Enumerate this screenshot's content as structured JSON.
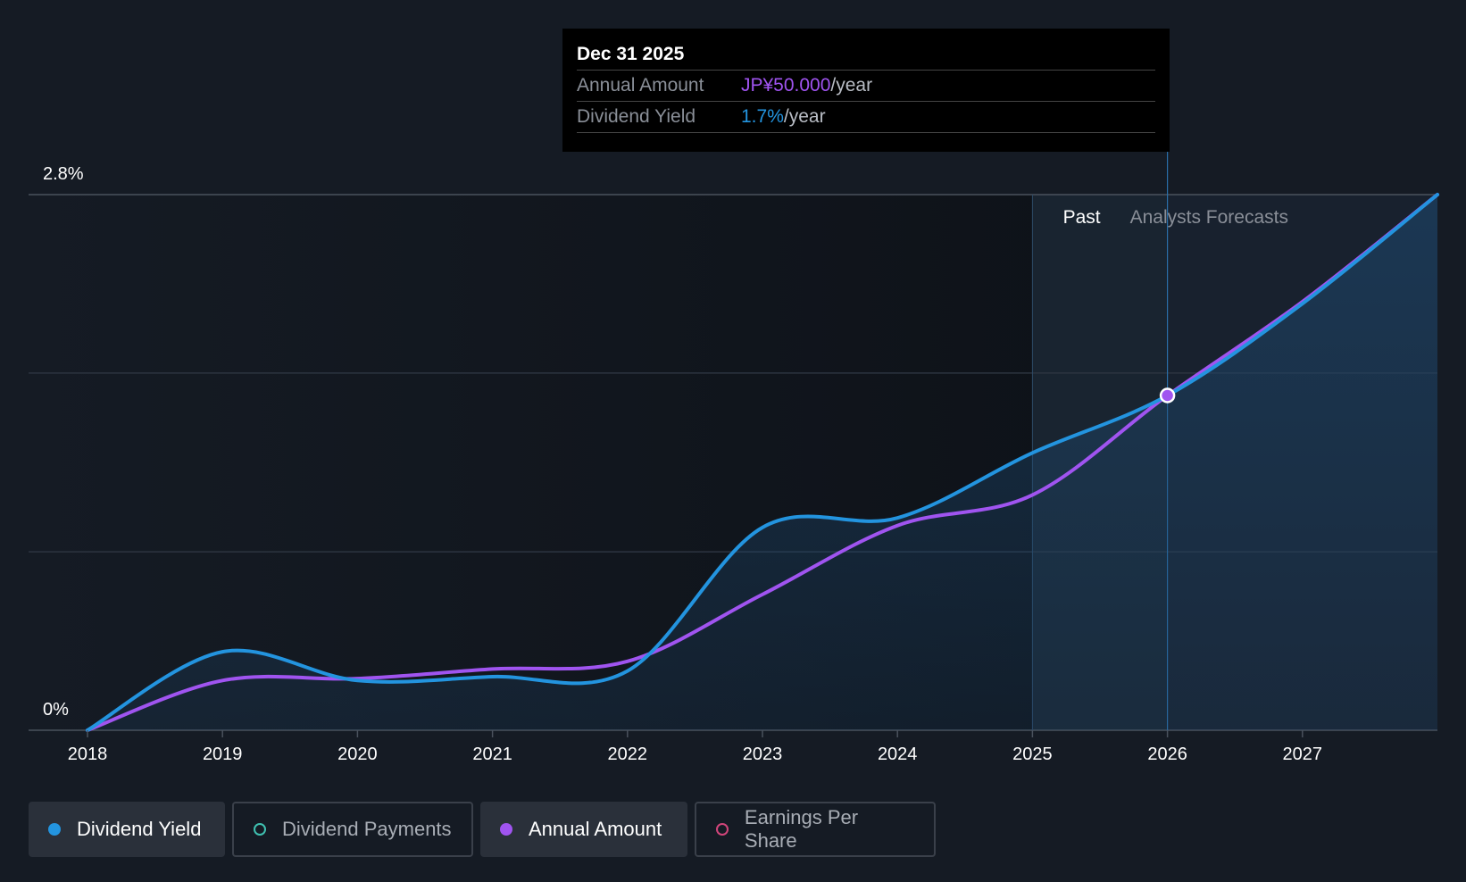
{
  "tooltip": {
    "date": "Dec 31 2025",
    "annual_label": "Annual Amount",
    "annual_value": "JP¥50.000",
    "annual_unit": "/year",
    "yield_label": "Dividend Yield",
    "yield_value": "1.7%",
    "yield_unit": "/year"
  },
  "regions": {
    "past_label": "Past",
    "forecast_label": "Analysts Forecasts"
  },
  "legend": [
    {
      "label": "Dividend Yield",
      "color": "#2394df",
      "filled": true,
      "active": true
    },
    {
      "label": "Dividend Payments",
      "color": "#3fc0b0",
      "filled": false,
      "active": false
    },
    {
      "label": "Annual Amount",
      "color": "#a054f0",
      "filled": true,
      "active": true
    },
    {
      "label": "Earnings Per Share",
      "color": "#d0457a",
      "filled": false,
      "active": false
    }
  ],
  "chart_data": {
    "type": "line",
    "title": "",
    "xlabel": "",
    "ylabel": "",
    "ylim": [
      0,
      2.8
    ],
    "xlim": [
      2018,
      2028
    ],
    "y_tick_labels": [
      "0%",
      "2.8%"
    ],
    "x_tick_labels": [
      "2018",
      "2019",
      "2020",
      "2021",
      "2022",
      "2023",
      "2024",
      "2025",
      "2026",
      "2027"
    ],
    "highlight_x": 2026.0,
    "past_end_x": 2025.0,
    "series": [
      {
        "name": "Dividend Yield",
        "color": "#2394df",
        "points": [
          [
            2018,
            0.0
          ],
          [
            2019,
            0.41
          ],
          [
            2020,
            0.26
          ],
          [
            2021,
            0.28
          ],
          [
            2022,
            0.31
          ],
          [
            2023,
            1.06
          ],
          [
            2024,
            1.11
          ],
          [
            2025,
            1.45
          ],
          [
            2026,
            1.75
          ],
          [
            2027,
            2.23
          ],
          [
            2028,
            2.8
          ]
        ]
      },
      {
        "name": "Annual Amount",
        "color": "#a054f0",
        "points": [
          [
            2018,
            0.0
          ],
          [
            2019,
            0.26
          ],
          [
            2020,
            0.27
          ],
          [
            2021,
            0.32
          ],
          [
            2022,
            0.36
          ],
          [
            2023,
            0.71
          ],
          [
            2024,
            1.07
          ],
          [
            2025,
            1.23
          ],
          [
            2026,
            1.75
          ],
          [
            2027,
            2.24
          ],
          [
            2028,
            2.8
          ]
        ]
      }
    ]
  }
}
